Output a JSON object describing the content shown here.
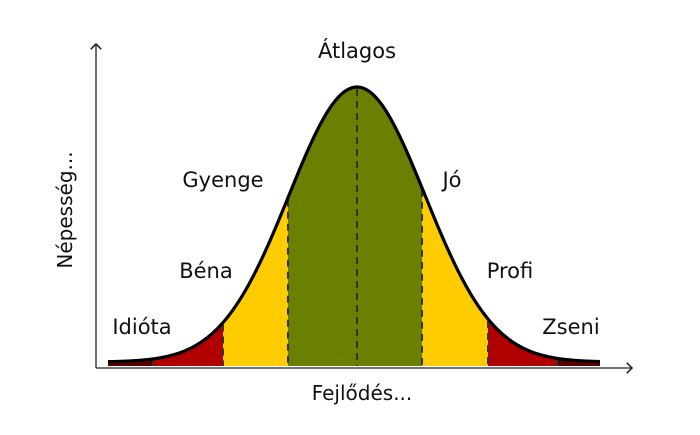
{
  "chart_data": {
    "type": "area",
    "shape": "bell-curve",
    "xlabel": "Fejlődés...",
    "ylabel": "Népesség...",
    "regions": [
      {
        "label": "Idióta",
        "color": "#b00000"
      },
      {
        "label": "Béna",
        "color": "#ffcc00"
      },
      {
        "label": "Gyenge",
        "color": "#ffcc00"
      },
      {
        "label": "Átlagos",
        "color": "#6b8000"
      },
      {
        "label": "Jó",
        "color": "#ffcc00"
      },
      {
        "label": "Profi",
        "color": "#ffcc00"
      },
      {
        "label": "Zseni",
        "color": "#b00000"
      }
    ],
    "dark_tail_color": "#5a0000"
  }
}
